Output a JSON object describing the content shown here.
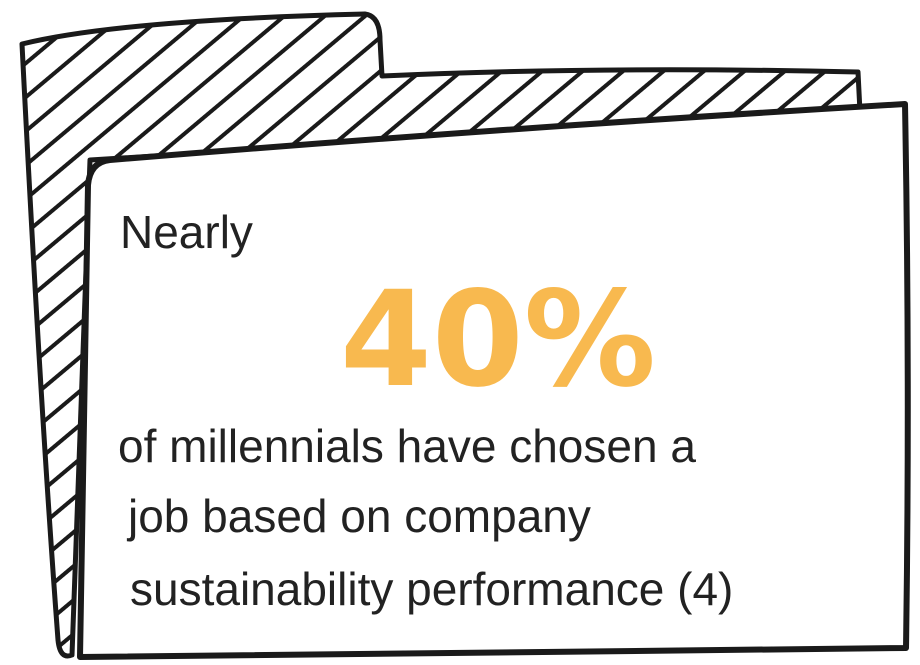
{
  "intro": "Nearly",
  "stat": "40%",
  "lines": [
    "of millennials have chosen a",
    "job based on company",
    "sustainability performance (4)"
  ]
}
